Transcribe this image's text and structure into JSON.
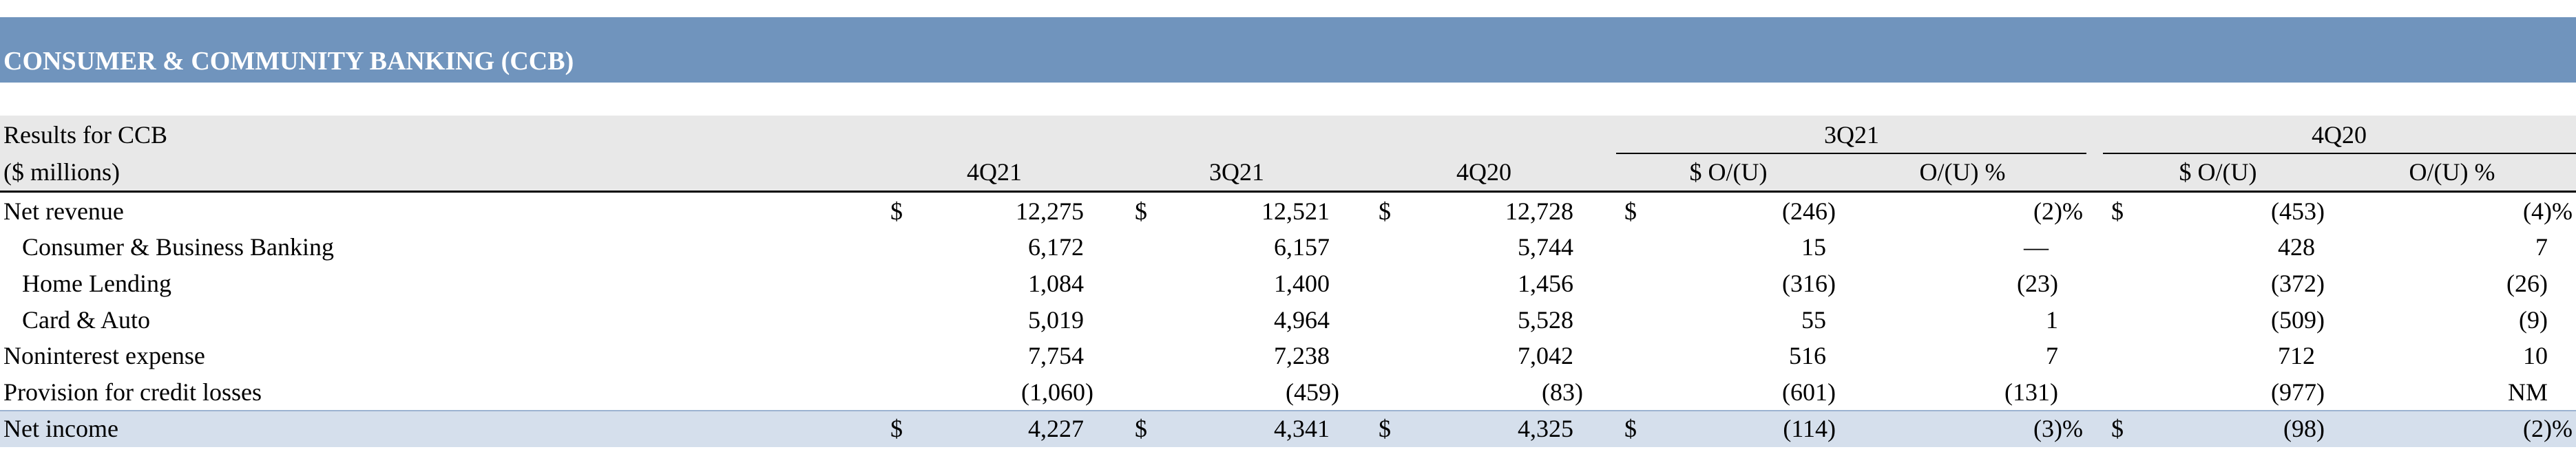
{
  "header": {
    "title": "CONSUMER & COMMUNITY BANKING (CCB)"
  },
  "table": {
    "caption": "Results for CCB",
    "unit": "($ millions)",
    "groups": [
      "3Q21",
      "4Q20"
    ],
    "columns": [
      "4Q21",
      "3Q21",
      "4Q20",
      "$ O/(U)",
      "O/(U) %",
      "$ O/(U)",
      "O/(U) %"
    ],
    "rows": [
      {
        "label": "Net revenue",
        "prefix": "$",
        "cells": [
          "12,275",
          "12,521",
          "12,728",
          "(246)",
          "(2)%",
          "(453)",
          "(4)%"
        ]
      },
      {
        "label": "Consumer & Business Banking",
        "cells": [
          "6,172",
          "6,157",
          "5,744",
          "15",
          "—",
          "428",
          "7"
        ]
      },
      {
        "label": "Home Lending",
        "cells": [
          "1,084",
          "1,400",
          "1,456",
          "(316)",
          "(23)",
          "(372)",
          "(26)"
        ]
      },
      {
        "label": "Card & Auto",
        "cells": [
          "5,019",
          "4,964",
          "5,528",
          "55",
          "1",
          "(509)",
          "(9)"
        ]
      },
      {
        "label": "Noninterest expense",
        "cells": [
          "7,754",
          "7,238",
          "7,042",
          "516",
          "7",
          "712",
          "10"
        ]
      },
      {
        "label": "Provision for credit losses",
        "cells": [
          "(1,060)",
          "(459)",
          "(83)",
          "(601)",
          "(131)",
          "(977)",
          "NM"
        ]
      },
      {
        "label": "Net income",
        "prefix": "$",
        "cells": [
          "4,227",
          "4,341",
          "4,325",
          "(114)",
          "(3)%",
          "(98)",
          "(2)%"
        ]
      }
    ]
  }
}
